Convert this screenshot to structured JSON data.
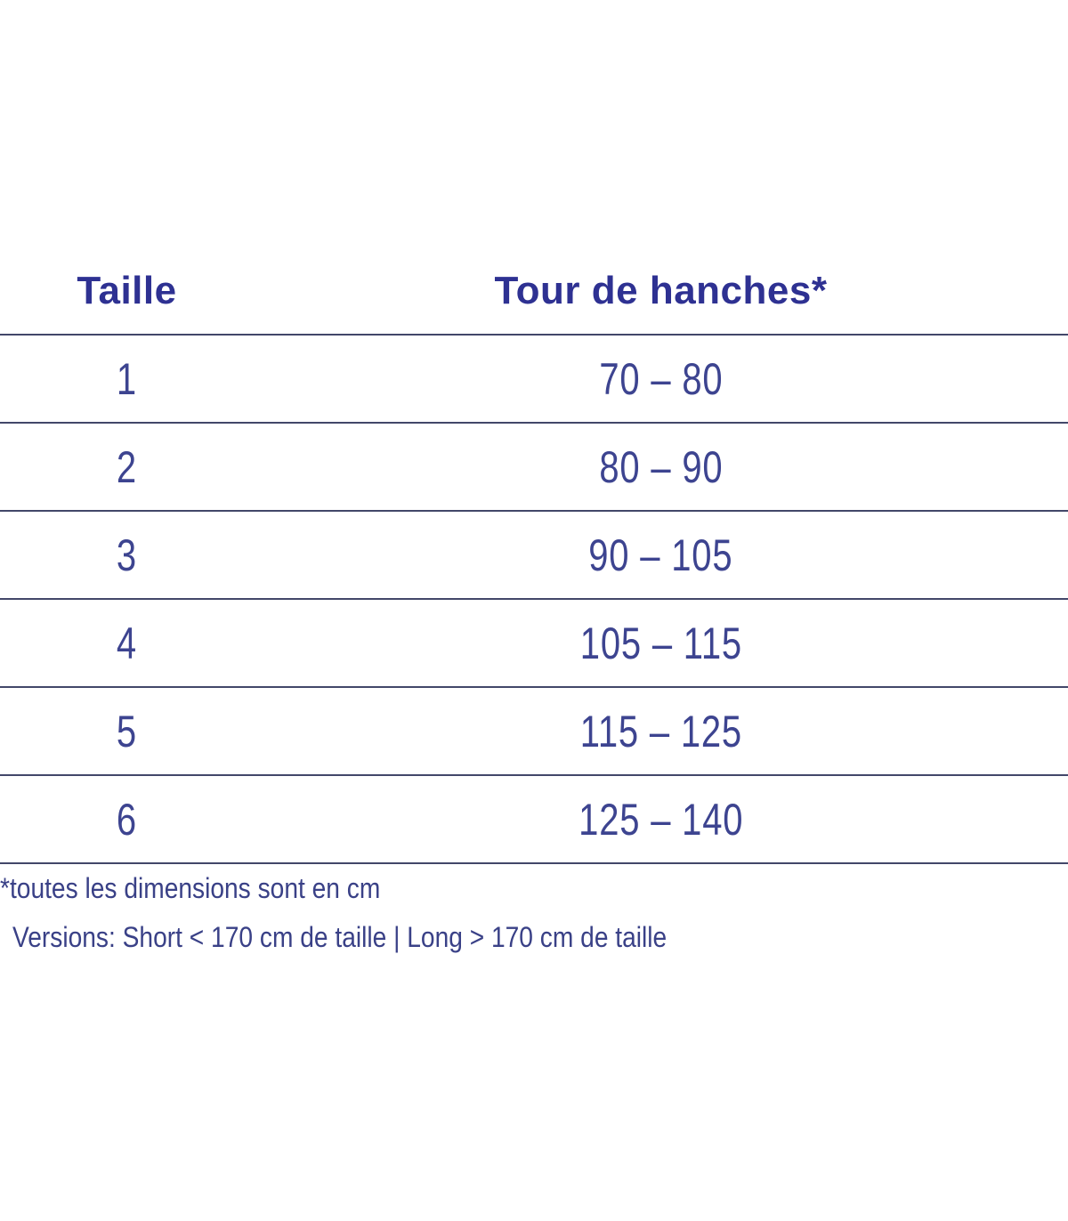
{
  "table": {
    "headers": {
      "size": "Taille",
      "hip": "Tour de hanches*"
    },
    "rows": [
      {
        "size": "1",
        "hip": "70 – 80"
      },
      {
        "size": "2",
        "hip": "80 – 90"
      },
      {
        "size": "3",
        "hip": "90 – 105"
      },
      {
        "size": "4",
        "hip": "105 – 115"
      },
      {
        "size": "5",
        "hip": "115 – 125"
      },
      {
        "size": "6",
        "hip": "125 – 140"
      }
    ]
  },
  "footnotes": {
    "dimensions_note": "*toutes les dimensions sont en cm",
    "versions_note": "Versions: Short < 170 cm de taille | Long > 170 cm de taille"
  },
  "colors": {
    "heading_text": "#2e3192",
    "body_text": "#3d4490",
    "footnote_text": "#3a4187",
    "row_line": "#424769",
    "background": "#ffffff"
  }
}
